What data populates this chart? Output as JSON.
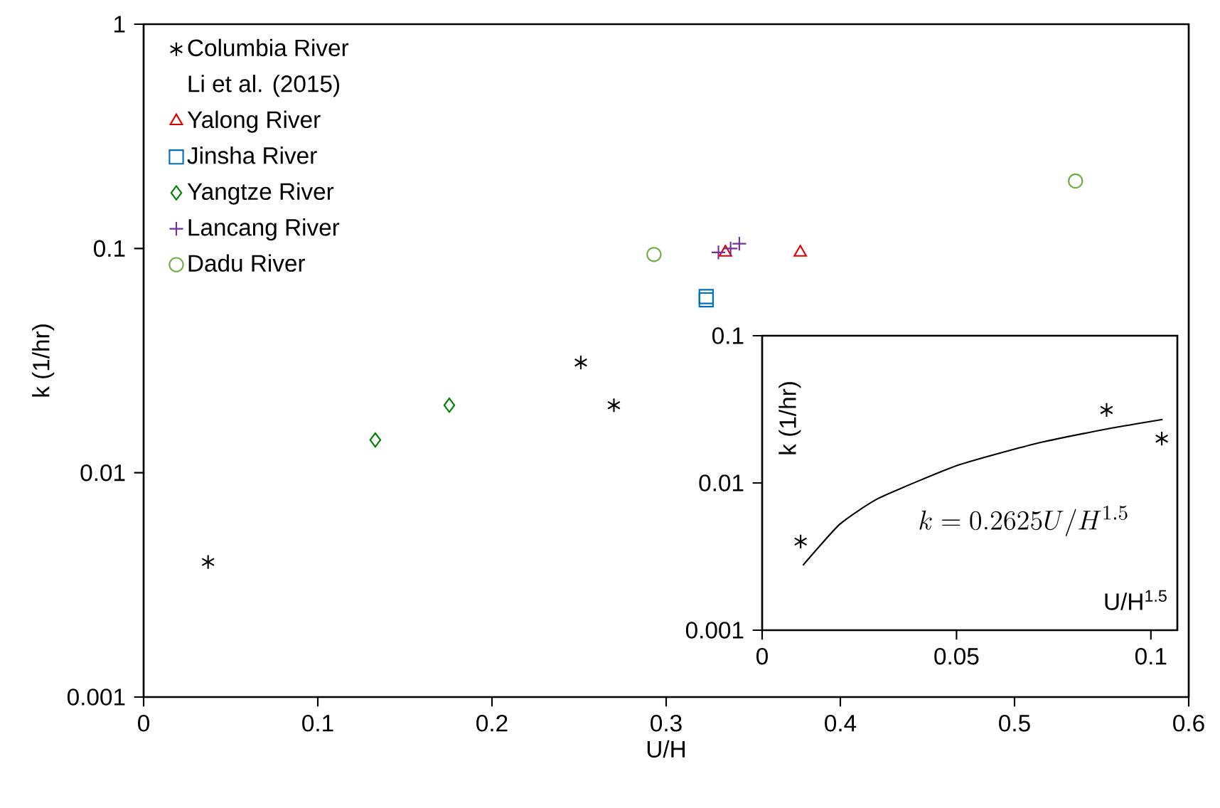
{
  "chart_data": [
    {
      "type": "scatter",
      "xlabel": "U/H",
      "ylabel": "k (1/hr)",
      "log": "y",
      "xlim": [
        0,
        0.6
      ],
      "ylim": [
        0.001,
        1
      ],
      "xticks": [
        0,
        0.1,
        0.2,
        0.3,
        0.4,
        0.5,
        0.6
      ],
      "yticks": [
        0.001,
        0.01,
        0.1,
        1
      ],
      "legend": "top left",
      "grid": false,
      "annotations": [
        "Li et al. (2015)"
      ],
      "series": [
        {
          "name": "Columbia River",
          "color": "#000000",
          "x": [
            0.037,
            0.251,
            0.27
          ],
          "values": [
            0.004,
            0.031,
            0.02
          ]
        },
        {
          "name": "Yalong River",
          "color": "#e00000",
          "marker": "triangle",
          "x": [
            0.334,
            0.377
          ],
          "values": [
            0.096,
            0.096
          ]
        },
        {
          "name": "Jinsha River",
          "color": "#0070c0",
          "marker": "square",
          "x": [
            0.323,
            0.323
          ],
          "values": [
            0.061,
            0.059
          ]
        },
        {
          "name": "Yangtze River",
          "color": "#008000",
          "marker": "diamond",
          "x": [
            0.133,
            0.1755
          ],
          "values": [
            0.014,
            0.02
          ]
        },
        {
          "name": "Lancang River",
          "color": "#7030a0",
          "marker": "cross",
          "x": [
            0.33,
            0.337,
            0.342
          ],
          "values": [
            0.096,
            0.1,
            0.105
          ]
        },
        {
          "name": "Dadu River",
          "color": "#70ad47",
          "marker": "circle",
          "x": [
            0.293,
            0.535
          ],
          "values": [
            0.094,
            0.2
          ]
        }
      ]
    },
    {
      "type": "scatter",
      "xlabel": "U/H$^{1.5}$",
      "ylabel": "k (1/hr)",
      "log": "y",
      "xlim": [
        0,
        0.1068
      ],
      "ylim": [
        0.001,
        0.1
      ],
      "xticks": [
        0,
        0.05,
        0.1
      ],
      "yticks": [
        0.001,
        0.01,
        0.1
      ],
      "legend": false,
      "grid": false,
      "annotations": [
        "k = 0.2625U/H^{1.5}"
      ],
      "series": [
        {
          "color": "#000000",
          "x": [
            0.0099,
            0.0886,
            0.1028
          ],
          "values": [
            0.004,
            0.0313,
            0.02
          ]
        },
        {
          "type": "line",
          "color": "#000000",
          "marker": "none",
          "x": [
            0.0105,
            0.02,
            0.03,
            0.05,
            0.07,
            0.09,
            0.103
          ],
          "values": [
            0.00276,
            0.00525,
            0.00788,
            0.0131,
            0.0184,
            0.0236,
            0.027
          ]
        }
      ]
    }
  ]
}
